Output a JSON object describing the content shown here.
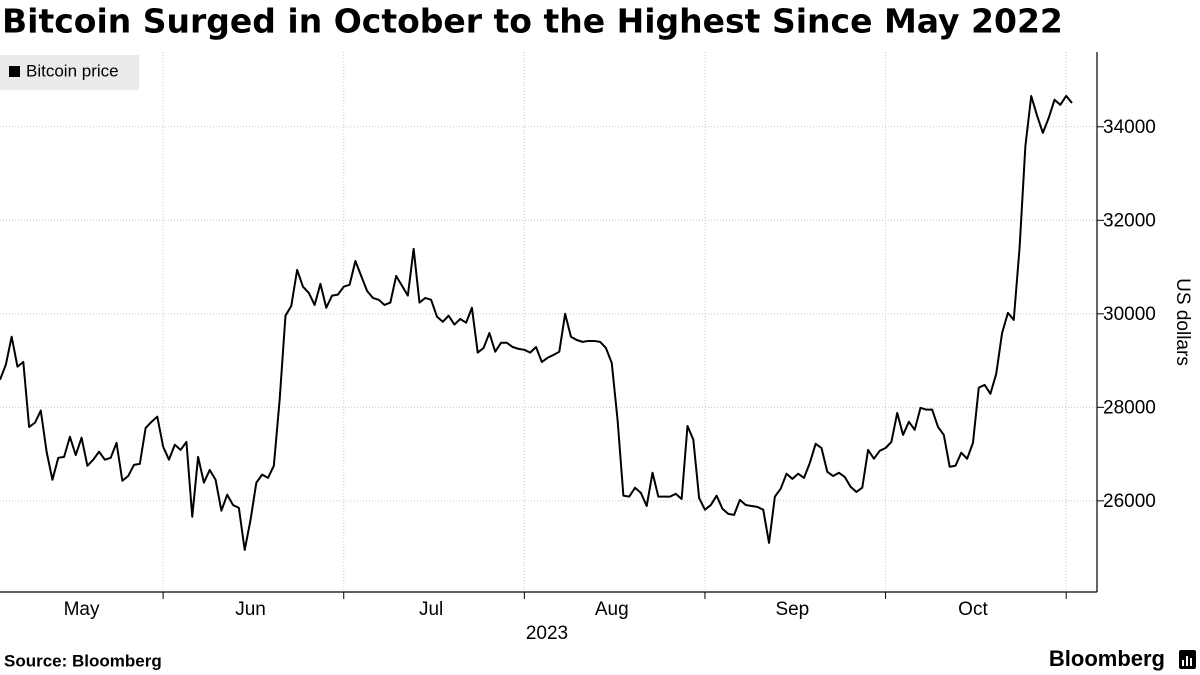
{
  "chart_data": {
    "type": "line",
    "title": "Bitcoin Surged in October to the Highest Since May 2022",
    "source": "Source: Bloomberg",
    "brand": "Bloomberg",
    "xlabel": "2023",
    "ylabel": "US dollars",
    "legend": "top-left",
    "grid": true,
    "ylim": [
      24050,
      35600
    ],
    "yticks": [
      26000,
      28000,
      30000,
      32000,
      34000
    ],
    "xticks": [
      28,
      59,
      90,
      121,
      152,
      183
    ],
    "categories": [
      null,
      null,
      null,
      null,
      null,
      null,
      null,
      null,
      null,
      null,
      null,
      null,
      null,
      null,
      "May",
      null,
      null,
      null,
      null,
      null,
      null,
      null,
      null,
      null,
      null,
      null,
      null,
      null,
      null,
      null,
      null,
      null,
      null,
      null,
      null,
      null,
      null,
      null,
      null,
      null,
      null,
      null,
      null,
      "Jun",
      null,
      null,
      null,
      null,
      null,
      null,
      null,
      null,
      null,
      null,
      null,
      null,
      null,
      null,
      null,
      null,
      null,
      null,
      null,
      null,
      null,
      null,
      null,
      null,
      null,
      null,
      null,
      null,
      null,
      null,
      "Jul",
      null,
      null,
      null,
      null,
      null,
      null,
      null,
      null,
      null,
      null,
      null,
      null,
      null,
      null,
      null,
      null,
      null,
      null,
      null,
      null,
      null,
      null,
      null,
      null,
      null,
      null,
      null,
      null,
      null,
      null,
      "Aug",
      null,
      null,
      null,
      null,
      null,
      null,
      null,
      null,
      null,
      null,
      null,
      null,
      null,
      null,
      null,
      null,
      null,
      null,
      null,
      null,
      null,
      null,
      null,
      null,
      null,
      null,
      null,
      null,
      null,
      null,
      "Sep",
      null,
      null,
      null,
      null,
      null,
      null,
      null,
      null,
      null,
      null,
      null,
      null,
      null,
      null,
      null,
      null,
      null,
      null,
      null,
      null,
      null,
      null,
      null,
      null,
      null,
      null,
      null,
      null,
      null,
      null,
      "Oct",
      null,
      null,
      null,
      null,
      null,
      null,
      null,
      null,
      null,
      null,
      null,
      null,
      null,
      null,
      null,
      null,
      null
    ],
    "series": [
      {
        "name": "Bitcoin price",
        "color": "#000000",
        "values": [
          28590,
          28910,
          29510,
          28870,
          28970,
          27580,
          27670,
          27930,
          27050,
          26450,
          26920,
          26940,
          27370,
          26980,
          27350,
          26750,
          26880,
          27050,
          26880,
          26920,
          27240,
          26430,
          26530,
          26770,
          26790,
          27560,
          27690,
          27800,
          27160,
          26880,
          27200,
          27090,
          27260,
          25660,
          26940,
          26390,
          26660,
          26450,
          25790,
          26130,
          25910,
          25850,
          24950,
          25590,
          26390,
          26560,
          26490,
          26750,
          28160,
          29960,
          30170,
          30940,
          30580,
          30450,
          30190,
          30640,
          30130,
          30390,
          30410,
          30580,
          30620,
          31130,
          30810,
          30490,
          30340,
          30300,
          30190,
          30240,
          30810,
          30600,
          30390,
          31390,
          30240,
          30340,
          30300,
          29940,
          29830,
          29960,
          29770,
          29890,
          29810,
          30130,
          29170,
          29270,
          29590,
          29190,
          29380,
          29380,
          29290,
          29250,
          29230,
          29170,
          29290,
          28970,
          29060,
          29120,
          29190,
          30000,
          29510,
          29440,
          29400,
          29420,
          29420,
          29400,
          29270,
          28950,
          27730,
          26110,
          26090,
          26280,
          26170,
          25890,
          26600,
          26090,
          26090,
          26090,
          26150,
          26040,
          27600,
          27310,
          26060,
          25810,
          25910,
          26110,
          25830,
          25720,
          25700,
          26020,
          25910,
          25890,
          25870,
          25810,
          25100,
          26090,
          26260,
          26580,
          26470,
          26580,
          26490,
          26810,
          27220,
          27130,
          26620,
          26530,
          26600,
          26510,
          26300,
          26190,
          26280,
          27090,
          26900,
          27070,
          27130,
          27260,
          27880,
          27410,
          27690,
          27520,
          27990,
          27950,
          27950,
          27580,
          27410,
          26730,
          26750,
          27030,
          26900,
          27240,
          28420,
          28480,
          28290,
          28720,
          29590,
          30020,
          29870,
          31410,
          33590,
          34660,
          34240,
          33870,
          34190,
          34580,
          34470,
          34660,
          34510
        ]
      }
    ]
  }
}
